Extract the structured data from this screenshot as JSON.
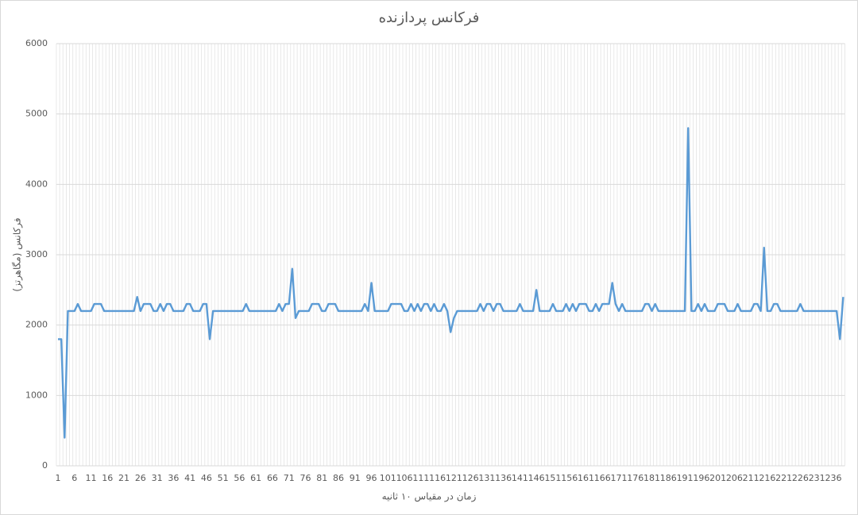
{
  "chart_data": {
    "type": "line",
    "title": "فرکانس پردازنده",
    "x_label": "زمان در مقیاس ۱۰ ثانیه",
    "y_label": "فرکانس (مگاهرتز)",
    "categories": [
      1,
      null,
      null,
      null,
      null,
      6,
      null,
      null,
      null,
      null,
      11,
      null,
      null,
      null,
      null,
      16,
      null,
      null,
      null,
      null,
      21,
      null,
      null,
      null,
      null,
      26,
      null,
      null,
      null,
      null,
      31,
      null,
      null,
      null,
      null,
      36,
      null,
      null,
      null,
      null,
      41,
      null,
      null,
      null,
      null,
      46,
      null,
      null,
      null,
      null,
      51,
      null,
      null,
      null,
      null,
      56,
      null,
      null,
      null,
      null,
      61,
      null,
      null,
      null,
      null,
      66,
      null,
      null,
      null,
      null,
      71,
      null,
      null,
      null,
      null,
      76,
      null,
      null,
      null,
      null,
      81,
      null,
      null,
      null,
      null,
      86,
      null,
      null,
      null,
      null,
      91,
      null,
      null,
      null,
      null,
      96,
      null,
      null,
      null,
      null,
      101,
      null,
      null,
      null,
      null,
      106,
      null,
      null,
      null,
      null,
      111,
      null,
      null,
      null,
      null,
      116,
      null,
      null,
      null,
      null,
      121,
      null,
      null,
      null,
      null,
      126,
      null,
      null,
      null,
      null,
      131,
      null,
      null,
      null,
      null,
      136,
      null,
      null,
      null,
      null,
      141,
      null,
      null,
      null,
      null,
      146,
      null,
      null,
      null,
      null,
      151,
      null,
      null,
      null,
      null,
      156,
      null,
      null,
      null,
      null,
      161,
      null,
      null,
      null,
      null,
      166,
      null,
      null,
      null,
      null,
      171,
      null,
      null,
      null,
      null,
      176,
      null,
      null,
      null,
      null,
      181,
      null,
      null,
      null,
      null,
      186,
      null,
      null,
      null,
      null,
      191,
      null,
      null,
      null,
      null,
      196,
      null,
      null,
      null,
      null,
      201,
      null,
      null,
      null,
      null,
      206,
      null,
      null,
      null,
      null,
      211,
      null,
      null,
      null,
      null,
      216,
      null,
      null,
      null,
      null,
      221,
      null,
      null,
      null,
      null,
      226,
      null,
      null,
      null,
      null,
      231,
      null,
      null,
      null,
      null,
      236,
      null,
      null,
      null
    ],
    "color": "#5b9bd5",
    "values": [
      1800,
      1800,
      400,
      2200,
      2200,
      2200,
      2300,
      2200,
      2200,
      2200,
      2200,
      2300,
      2300,
      2300,
      2200,
      2200,
      2200,
      2200,
      2200,
      2200,
      2200,
      2200,
      2200,
      2200,
      2400,
      2200,
      2300,
      2300,
      2300,
      2200,
      2200,
      2300,
      2200,
      2300,
      2300,
      2200,
      2200,
      2200,
      2200,
      2300,
      2300,
      2200,
      2200,
      2200,
      2300,
      2300,
      1800,
      2200,
      2200,
      2200,
      2200,
      2200,
      2200,
      2200,
      2200,
      2200,
      2200,
      2300,
      2200,
      2200,
      2200,
      2200,
      2200,
      2200,
      2200,
      2200,
      2200,
      2300,
      2200,
      2300,
      2300,
      2800,
      2100,
      2200,
      2200,
      2200,
      2200,
      2300,
      2300,
      2300,
      2200,
      2200,
      2300,
      2300,
      2300,
      2200,
      2200,
      2200,
      2200,
      2200,
      2200,
      2200,
      2200,
      2300,
      2200,
      2600,
      2200,
      2200,
      2200,
      2200,
      2200,
      2300,
      2300,
      2300,
      2300,
      2200,
      2200,
      2300,
      2200,
      2300,
      2200,
      2300,
      2300,
      2200,
      2300,
      2200,
      2200,
      2300,
      2200,
      1900,
      2100,
      2200,
      2200,
      2200,
      2200,
      2200,
      2200,
      2200,
      2300,
      2200,
      2300,
      2300,
      2200,
      2300,
      2300,
      2200,
      2200,
      2200,
      2200,
      2200,
      2300,
      2200,
      2200,
      2200,
      2200,
      2500,
      2200,
      2200,
      2200,
      2200,
      2300,
      2200,
      2200,
      2200,
      2300,
      2200,
      2300,
      2200,
      2300,
      2300,
      2300,
      2200,
      2200,
      2300,
      2200,
      2300,
      2300,
      2300,
      2600,
      2300,
      2200,
      2300,
      2200,
      2200,
      2200,
      2200,
      2200,
      2200,
      2300,
      2300,
      2200,
      2300,
      2200,
      2200,
      2200,
      2200,
      2200,
      2200,
      2200,
      2200,
      2200,
      4800,
      2200,
      2200,
      2300,
      2200,
      2300,
      2200,
      2200,
      2200,
      2300,
      2300,
      2300,
      2200,
      2200,
      2200,
      2300,
      2200,
      2200,
      2200,
      2200,
      2300,
      2300,
      2200,
      3100,
      2200,
      2200,
      2300,
      2300,
      2200,
      2200,
      2200,
      2200,
      2200,
      2200,
      2300,
      2200,
      2200,
      2200,
      2200,
      2200,
      2200,
      2200,
      2200,
      2200,
      2200,
      2200,
      1800,
      2400
    ],
    "ylim": [
      0,
      6000
    ],
    "yticks": [
      0,
      1000,
      2000,
      3000,
      4000,
      5000,
      6000
    ],
    "grid": true
  }
}
